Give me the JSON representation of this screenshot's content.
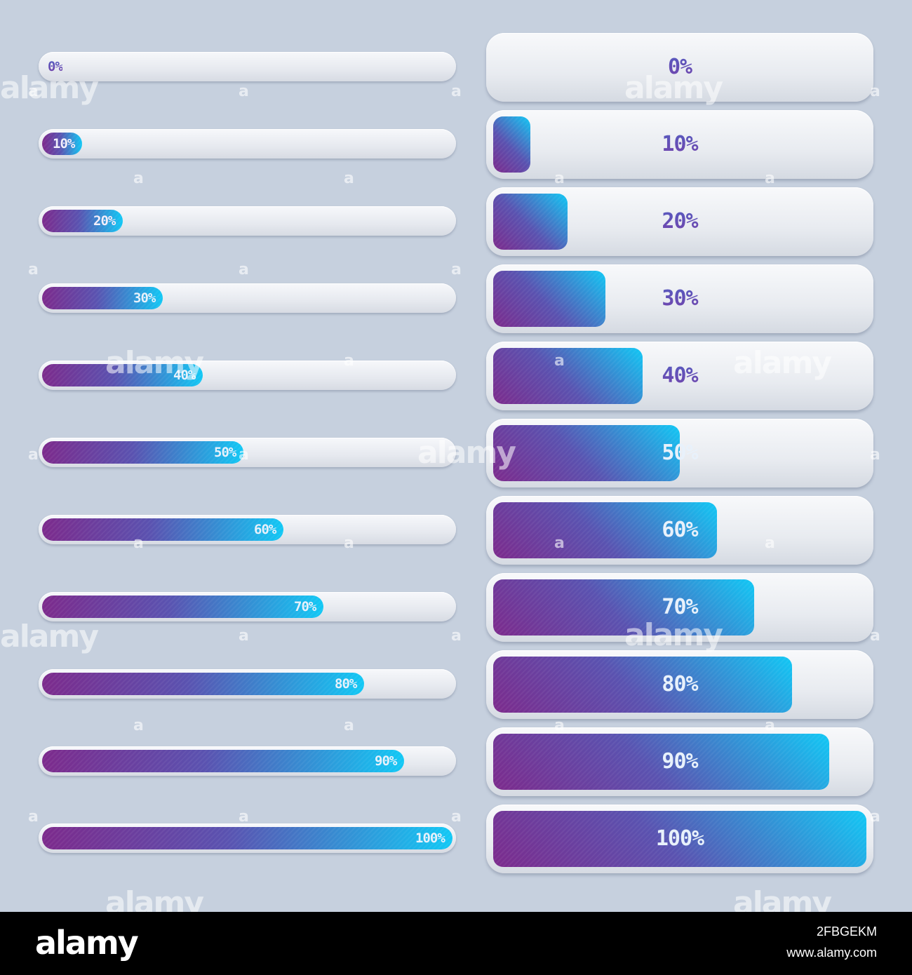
{
  "progress_bars_slim": [
    {
      "label": "0%",
      "progress": 0
    },
    {
      "label": "10%",
      "progress": 10
    },
    {
      "label": "20%",
      "progress": 20
    },
    {
      "label": "30%",
      "progress": 30
    },
    {
      "label": "40%",
      "progress": 40
    },
    {
      "label": "50%",
      "progress": 50
    },
    {
      "label": "60%",
      "progress": 60
    },
    {
      "label": "70%",
      "progress": 70
    },
    {
      "label": "80%",
      "progress": 80
    },
    {
      "label": "90%",
      "progress": 90
    },
    {
      "label": "100%",
      "progress": 100
    }
  ],
  "progress_bars_large": [
    {
      "label": "0%",
      "progress": 0
    },
    {
      "label": "10%",
      "progress": 10
    },
    {
      "label": "20%",
      "progress": 20
    },
    {
      "label": "30%",
      "progress": 30
    },
    {
      "label": "40%",
      "progress": 40
    },
    {
      "label": "50%",
      "progress": 50
    },
    {
      "label": "60%",
      "progress": 60
    },
    {
      "label": "70%",
      "progress": 70
    },
    {
      "label": "80%",
      "progress": 80
    },
    {
      "label": "90%",
      "progress": 90
    },
    {
      "label": "100%",
      "progress": 100
    }
  ],
  "colors": {
    "background": "#c6d0de",
    "track": "#e6e9ef",
    "fill_start": "#7c2a8c",
    "fill_end": "#11c8f5",
    "label_dark": "#5a3fae",
    "label_light": "#e8f1fb"
  },
  "watermark": {
    "text": "alamy",
    "mark": "a"
  },
  "footer": {
    "logo": "alamy",
    "image_id": "2FBGEKM",
    "url": "www.alamy.com"
  }
}
